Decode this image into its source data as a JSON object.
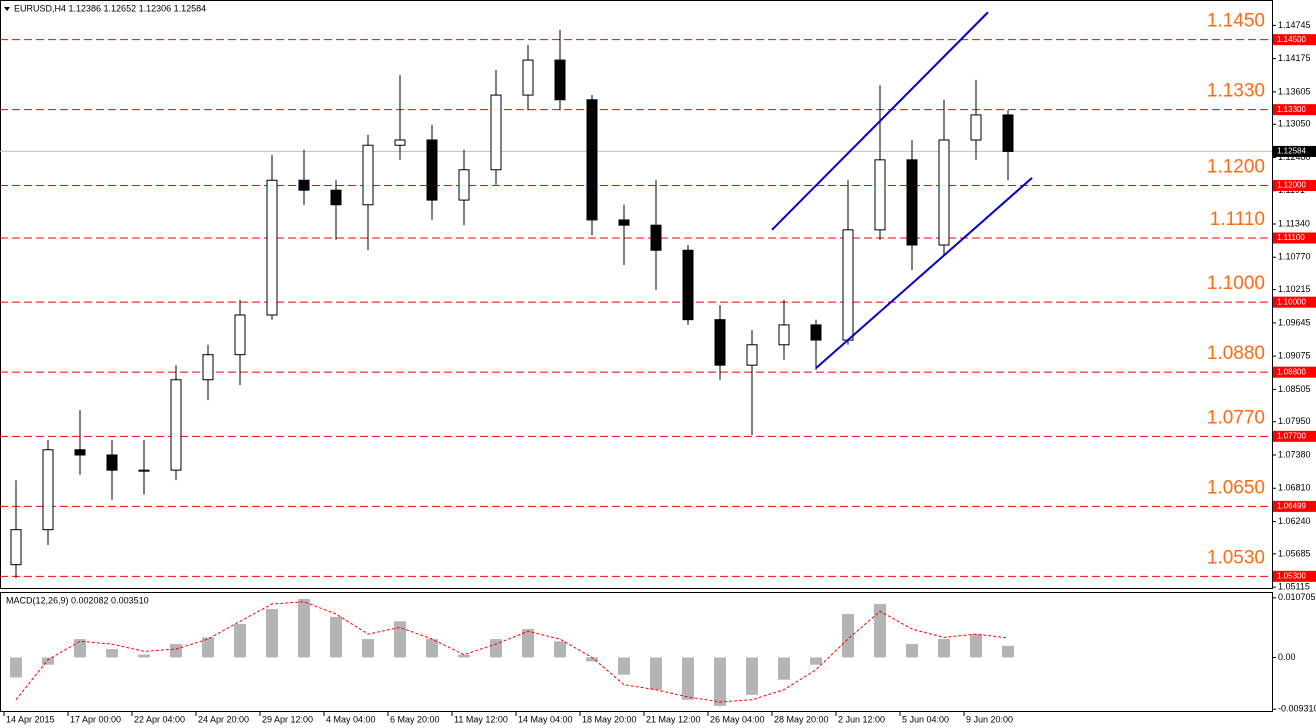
{
  "header": "EURUSD,H4  1.12386 1.12652 1.12306 1.12584",
  "chart_data": [
    {
      "type": "candlestick",
      "x": [
        4,
        12,
        20,
        28,
        36,
        44,
        52,
        60,
        68,
        76,
        84,
        92,
        100,
        108,
        116,
        124,
        132,
        140,
        148,
        156,
        164,
        172,
        180,
        188,
        196,
        204,
        212,
        220,
        228,
        236,
        244,
        252
      ],
      "open": [
        1.055,
        1.061,
        1.0747,
        1.0738,
        1.0712,
        1.0712,
        1.0867,
        1.091,
        1.0978,
        1.1209,
        1.1192,
        1.1167,
        1.1269,
        1.1278,
        1.1175,
        1.1227,
        1.1355,
        1.1415,
        1.1347,
        1.1141,
        1.1132,
        1.1089,
        1.097,
        1.0892,
        1.0927,
        1.0961,
        1.0935,
        1.1124,
        1.1244,
        1.1098,
        1.1278,
        1.1321
      ],
      "high": [
        1.0695,
        1.0764,
        1.0815,
        1.0764,
        1.0764,
        1.0892,
        1.0927,
        1.1004,
        1.1252,
        1.1261,
        1.1209,
        1.1287,
        1.1389,
        1.1304,
        1.1261,
        1.1398,
        1.1441,
        1.1467,
        1.1355,
        1.1167,
        1.1209,
        1.1098,
        1.0995,
        1.0952,
        1.1004,
        1.097,
        1.1209,
        1.1372,
        1.1278,
        1.1347,
        1.1381,
        1.1329
      ],
      "low": [
        1.0527,
        1.0584,
        1.0704,
        1.0661,
        1.067,
        1.0695,
        1.0832,
        1.0858,
        1.097,
        1.1167,
        1.1107,
        1.1089,
        1.1244,
        1.1141,
        1.1132,
        1.1201,
        1.1329,
        1.1329,
        1.1115,
        1.1064,
        1.1021,
        1.0961,
        1.0867,
        1.0772,
        1.0901,
        1.0884,
        1.0927,
        1.1107,
        1.1055,
        1.1081,
        1.1244,
        1.1209
      ],
      "close": [
        1.061,
        1.0747,
        1.0738,
        1.0712,
        1.0712,
        1.0867,
        1.091,
        1.0978,
        1.1209,
        1.1192,
        1.1167,
        1.1269,
        1.1278,
        1.1175,
        1.1227,
        1.1355,
        1.1415,
        1.1347,
        1.1141,
        1.1132,
        1.1089,
        1.097,
        1.0892,
        1.0927,
        1.0961,
        1.0935,
        1.1124,
        1.1244,
        1.1098,
        1.1278,
        1.1321,
        1.12584
      ],
      "xlim": [
        0,
        318
      ],
      "ylim": [
        1.051,
        1.1518
      ],
      "xticks": [
        {
          "value": 1,
          "label": "14 Apr 2015"
        },
        {
          "value": 17,
          "label": "17 Apr 00:00"
        },
        {
          "value": 33,
          "label": "22 Apr 04:00"
        },
        {
          "value": 49,
          "label": "24 Apr 20:00"
        },
        {
          "value": 65,
          "label": "29 Apr 12:00"
        },
        {
          "value": 81,
          "label": "4 May 04:00"
        },
        {
          "value": 97,
          "label": "6 May 20:00"
        },
        {
          "value": 113,
          "label": "11 May 12:00"
        },
        {
          "value": 129,
          "label": "14 May 04:00"
        },
        {
          "value": 145,
          "label": "18 May 20:00"
        },
        {
          "value": 161,
          "label": "21 May 12:00"
        },
        {
          "value": 177,
          "label": "26 May 04:00"
        },
        {
          "value": 193,
          "label": "28 May 20:00"
        },
        {
          "value": 209,
          "label": "2 Jun 12:00"
        },
        {
          "value": 225,
          "label": "5 Jun 04:00"
        },
        {
          "value": 241,
          "label": "9 Jun 20:00"
        }
      ],
      "yticks": [
        1.14745,
        1.14175,
        1.13605,
        {
          "value": 1.1305,
          "label": "1.13050"
        },
        {
          "value": 1.1248,
          "label": "1.12480"
        },
        1.1191,
        {
          "value": 1.1134,
          "label": "1.11340"
        },
        {
          "value": 1.1077,
          "label": "1.10770"
        },
        1.10215,
        1.09645,
        1.09075,
        1.08505,
        {
          "value": 1.0795,
          "label": "1.07950"
        },
        {
          "value": 1.0738,
          "label": "1.07380"
        },
        {
          "value": 1.0681,
          "label": "1.06810"
        },
        {
          "value": 1.0624,
          "label": "1.06240"
        },
        1.05685,
        1.05115
      ],
      "levels": [
        {
          "value": 1.145,
          "label": "1.1450",
          "axis_label": "1.14500"
        },
        {
          "value": 1.133,
          "label": "1.1330",
          "axis_label": "1.13300"
        },
        {
          "value": 1.12,
          "label": "1.1200",
          "axis_label": "1.12000"
        },
        {
          "value": 1.111,
          "label": "1.1110",
          "axis_label": "1.11100"
        },
        {
          "value": 1.1,
          "label": "1.1000",
          "axis_label": "1.10000"
        },
        {
          "value": 1.088,
          "label": "1.0880",
          "axis_label": "1.08800"
        },
        {
          "value": 1.077,
          "label": "1.0770",
          "axis_label": "1.07700"
        },
        {
          "value": 1.06499,
          "label": "1.0650",
          "axis_label": "1.06499"
        },
        {
          "value": 1.053,
          "label": "1.0530",
          "axis_label": "1.05300"
        }
      ],
      "level_color": "#ff0000",
      "current_price": 1.12584,
      "trendlines": [
        {
          "x": [
            193,
            247
          ],
          "y": [
            1.1124,
            1.1497
          ]
        },
        {
          "x": [
            204,
            258
          ],
          "y": [
            1.0887,
            1.1213
          ]
        }
      ],
      "trendline_color": "#0000cc",
      "grid": false
    },
    {
      "type": "macd",
      "title": "MACD(12,26,9) 0.002082 0.003510",
      "ylim": [
        -0.0098,
        0.0114
      ],
      "yticks": [
        0.010705,
        {
          "value": 0,
          "label": "0.00"
        },
        {
          "value": -0.00931,
          "label": "-0.009310"
        }
      ],
      "series": [
        {
          "kind": "bar",
          "color": "#b4b4b4",
          "values": [
            -0.0036,
            -0.0013,
            0.0033,
            0.0015,
            0.0005,
            0.0024,
            0.0036,
            0.006,
            0.0087,
            0.0105,
            0.0073,
            0.0033,
            0.0065,
            0.0033,
            0.0005,
            0.0033,
            0.0051,
            0.0029,
            -0.0007,
            -0.0031,
            -0.0058,
            -0.0076,
            -0.0087,
            -0.0067,
            -0.004,
            -0.0013,
            0.0078,
            0.0096,
            0.0024,
            0.0033,
            0.0042,
            0.0021
          ]
        },
        {
          "kind": "line",
          "color": "#ff0000",
          "values": [
            -0.0076,
            -0.0004,
            0.0029,
            0.0024,
            0.0011,
            0.0015,
            0.0033,
            0.0065,
            0.0096,
            0.01,
            0.0078,
            0.0042,
            0.0054,
            0.0033,
            0.0005,
            0.0024,
            0.0047,
            0.0033,
            0,
            -0.0049,
            -0.0058,
            -0.0071,
            -0.008,
            -0.0076,
            -0.0058,
            -0.0022,
            0.0033,
            0.0083,
            0.0051,
            0.0036,
            0.0042,
            0.0035
          ]
        }
      ]
    }
  ]
}
